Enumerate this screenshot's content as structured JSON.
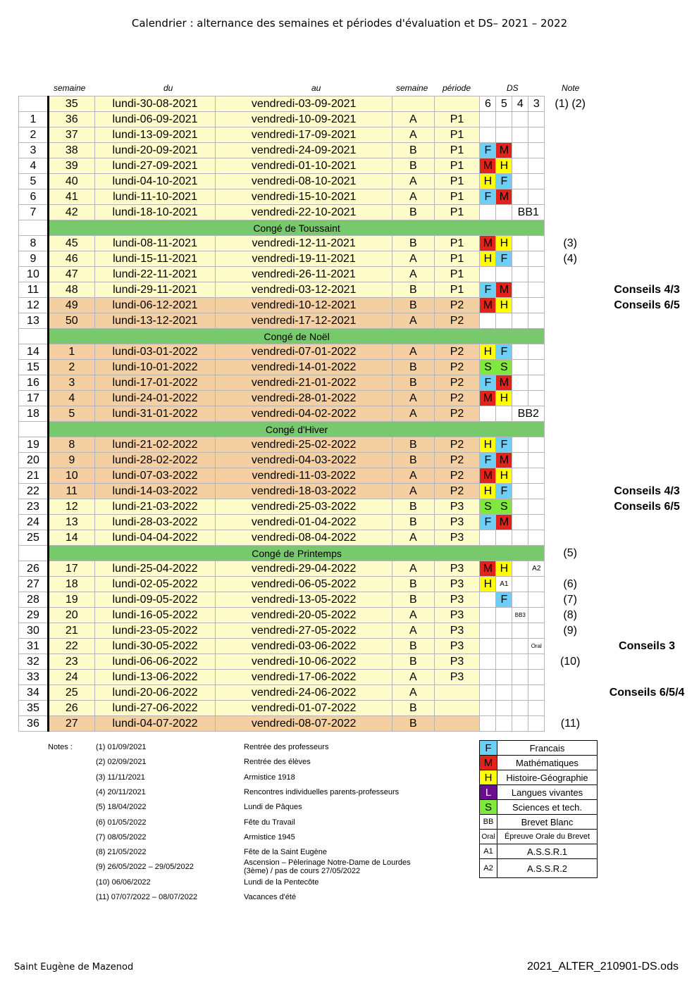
{
  "title": "Calendrier : alternance des semaines et périodes d'évaluation et DS– 2021 – 2022",
  "headers": {
    "semaine": "semaine",
    "du": "du",
    "au": "au",
    "ab": "semaine",
    "periode": "période",
    "ds": "DS",
    "note": "Note"
  },
  "rows": [
    {
      "idx": "",
      "sem": "35",
      "du": "lundi-30-08-2021",
      "au": "vendredi-03-09-2021",
      "ab": "",
      "per": "",
      "bg": "y",
      "ds": [
        "6",
        "5",
        "4",
        "3"
      ],
      "note": "(1) (2)",
      "side": ""
    },
    {
      "idx": "1",
      "sem": "36",
      "du": "lundi-06-09-2021",
      "au": "vendredi-10-09-2021",
      "ab": "A",
      "per": "P1",
      "bg": "y",
      "ds": [
        "",
        "",
        "",
        ""
      ],
      "note": "",
      "side": ""
    },
    {
      "idx": "2",
      "sem": "37",
      "du": "lundi-13-09-2021",
      "au": "vendredi-17-09-2021",
      "ab": "A",
      "per": "P1",
      "bg": "y",
      "ds": [
        "",
        "",
        "",
        ""
      ],
      "note": "",
      "side": ""
    },
    {
      "idx": "3",
      "sem": "38",
      "du": "lundi-20-09-2021",
      "au": "vendredi-24-09-2021",
      "ab": "B",
      "per": "P1",
      "bg": "y",
      "ds": [
        "F",
        "M",
        "",
        ""
      ],
      "note": "",
      "side": ""
    },
    {
      "idx": "4",
      "sem": "39",
      "du": "lundi-27-09-2021",
      "au": "vendredi-01-10-2021",
      "ab": "B",
      "per": "P1",
      "bg": "y",
      "ds": [
        "M",
        "H",
        "",
        ""
      ],
      "note": "",
      "side": ""
    },
    {
      "idx": "5",
      "sem": "40",
      "du": "lundi-04-10-2021",
      "au": "vendredi-08-10-2021",
      "ab": "A",
      "per": "P1",
      "bg": "y",
      "ds": [
        "H",
        "F",
        "",
        ""
      ],
      "note": "",
      "side": ""
    },
    {
      "idx": "6",
      "sem": "41",
      "du": "lundi-11-10-2021",
      "au": "vendredi-15-10-2021",
      "ab": "A",
      "per": "P1",
      "bg": "y",
      "ds": [
        "F",
        "M",
        "",
        ""
      ],
      "note": "",
      "side": ""
    },
    {
      "idx": "7",
      "sem": "42",
      "du": "lundi-18-10-2021",
      "au": "vendredi-22-10-2021",
      "ab": "B",
      "per": "P1",
      "bg": "y",
      "ds": [
        "",
        "",
        "BB1",
        ""
      ],
      "note": "",
      "side": "",
      "wide": "BB1"
    },
    {
      "conge": "Congé de Toussaint"
    },
    {
      "idx": "8",
      "sem": "45",
      "du": "lundi-08-11-2021",
      "au": "vendredi-12-11-2021",
      "ab": "B",
      "per": "P1",
      "bg": "y",
      "ds": [
        "M",
        "H",
        "",
        ""
      ],
      "note": "(3)",
      "side": ""
    },
    {
      "idx": "9",
      "sem": "46",
      "du": "lundi-15-11-2021",
      "au": "vendredi-19-11-2021",
      "ab": "A",
      "per": "P1",
      "bg": "y",
      "ds": [
        "H",
        "F",
        "",
        ""
      ],
      "note": "(4)",
      "side": ""
    },
    {
      "idx": "10",
      "sem": "47",
      "du": "lundi-22-11-2021",
      "au": "vendredi-26-11-2021",
      "ab": "A",
      "per": "P1",
      "bg": "y",
      "ds": [
        "",
        "",
        "",
        ""
      ],
      "note": "",
      "side": ""
    },
    {
      "idx": "11",
      "sem": "48",
      "du": "lundi-29-11-2021",
      "au": "vendredi-03-12-2021",
      "ab": "B",
      "per": "P1",
      "bg": "y",
      "ds": [
        "F",
        "M",
        "",
        ""
      ],
      "note": "",
      "side": "Conseils 4/3"
    },
    {
      "idx": "12",
      "sem": "49",
      "du": "lundi-06-12-2021",
      "au": "vendredi-10-12-2021",
      "ab": "B",
      "per": "P2",
      "bg": "o",
      "ds": [
        "M",
        "H",
        "",
        ""
      ],
      "note": "",
      "side": "Conseils 6/5"
    },
    {
      "idx": "13",
      "sem": "50",
      "du": "lundi-13-12-2021",
      "au": "vendredi-17-12-2021",
      "ab": "A",
      "per": "P2",
      "bg": "o",
      "ds": [
        "",
        "",
        "",
        ""
      ],
      "note": "",
      "side": ""
    },
    {
      "conge": "Congé de Noël"
    },
    {
      "idx": "14",
      "sem": "1",
      "du": "lundi-03-01-2022",
      "au": "vendredi-07-01-2022",
      "ab": "A",
      "per": "P2",
      "bg": "o",
      "ds": [
        "H",
        "F",
        "",
        ""
      ],
      "note": "",
      "side": ""
    },
    {
      "idx": "15",
      "sem": "2",
      "du": "lundi-10-01-2022",
      "au": "vendredi-14-01-2022",
      "ab": "B",
      "per": "P2",
      "bg": "o",
      "ds": [
        "S",
        "S",
        "",
        ""
      ],
      "note": "",
      "side": ""
    },
    {
      "idx": "16",
      "sem": "3",
      "du": "lundi-17-01-2022",
      "au": "vendredi-21-01-2022",
      "ab": "B",
      "per": "P2",
      "bg": "o",
      "ds": [
        "F",
        "M",
        "",
        ""
      ],
      "note": "",
      "side": ""
    },
    {
      "idx": "17",
      "sem": "4",
      "du": "lundi-24-01-2022",
      "au": "vendredi-28-01-2022",
      "ab": "A",
      "per": "P2",
      "bg": "o",
      "ds": [
        "M",
        "H",
        "",
        ""
      ],
      "note": "",
      "side": ""
    },
    {
      "idx": "18",
      "sem": "5",
      "du": "lundi-31-01-2022",
      "au": "vendredi-04-02-2022",
      "ab": "A",
      "per": "P2",
      "bg": "o",
      "ds": [
        "",
        "",
        "BB2",
        ""
      ],
      "note": "",
      "side": "",
      "wide": "BB2"
    },
    {
      "conge": "Congé d'Hiver"
    },
    {
      "idx": "19",
      "sem": "8",
      "du": "lundi-21-02-2022",
      "au": "vendredi-25-02-2022",
      "ab": "B",
      "per": "P2",
      "bg": "o",
      "ds": [
        "H",
        "F",
        "",
        ""
      ],
      "note": "",
      "side": ""
    },
    {
      "idx": "20",
      "sem": "9",
      "du": "lundi-28-02-2022",
      "au": "vendredi-04-03-2022",
      "ab": "B",
      "per": "P2",
      "bg": "o",
      "ds": [
        "F",
        "M",
        "",
        ""
      ],
      "note": "",
      "side": ""
    },
    {
      "idx": "21",
      "sem": "10",
      "du": "lundi-07-03-2022",
      "au": "vendredi-11-03-2022",
      "ab": "A",
      "per": "P2",
      "bg": "o",
      "ds": [
        "M",
        "H",
        "",
        ""
      ],
      "note": "",
      "side": ""
    },
    {
      "idx": "22",
      "sem": "11",
      "du": "lundi-14-03-2022",
      "au": "vendredi-18-03-2022",
      "ab": "A",
      "per": "P2",
      "bg": "o",
      "ds": [
        "H",
        "F",
        "",
        ""
      ],
      "note": "",
      "side": "Conseils 4/3"
    },
    {
      "idx": "23",
      "sem": "12",
      "du": "lundi-21-03-2022",
      "au": "vendredi-25-03-2022",
      "ab": "B",
      "per": "P3",
      "bg": "y",
      "ds": [
        "S",
        "S",
        "",
        ""
      ],
      "note": "",
      "side": "Conseils 6/5"
    },
    {
      "idx": "24",
      "sem": "13",
      "du": "lundi-28-03-2022",
      "au": "vendredi-01-04-2022",
      "ab": "B",
      "per": "P3",
      "bg": "y",
      "ds": [
        "F",
        "M",
        "",
        ""
      ],
      "note": "",
      "side": ""
    },
    {
      "idx": "25",
      "sem": "14",
      "du": "lundi-04-04-2022",
      "au": "vendredi-08-04-2022",
      "ab": "A",
      "per": "P3",
      "bg": "y",
      "ds": [
        "",
        "",
        "",
        ""
      ],
      "note": "",
      "side": ""
    },
    {
      "conge": "Congé de Printemps",
      "note": "(5)"
    },
    {
      "idx": "26",
      "sem": "17",
      "du": "lundi-25-04-2022",
      "au": "vendredi-29-04-2022",
      "ab": "A",
      "per": "P3",
      "bg": "y",
      "ds": [
        "M",
        "H",
        "",
        "A2"
      ],
      "note": "",
      "side": ""
    },
    {
      "idx": "27",
      "sem": "18",
      "du": "lundi-02-05-2022",
      "au": "vendredi-06-05-2022",
      "ab": "B",
      "per": "P3",
      "bg": "y",
      "ds": [
        "H",
        "A1",
        "",
        ""
      ],
      "note": "(6)",
      "side": ""
    },
    {
      "idx": "28",
      "sem": "19",
      "du": "lundi-09-05-2022",
      "au": "vendredi-13-05-2022",
      "ab": "B",
      "per": "P3",
      "bg": "y",
      "ds": [
        "",
        "F",
        "",
        ""
      ],
      "note": "(7)",
      "side": ""
    },
    {
      "idx": "29",
      "sem": "20",
      "du": "lundi-16-05-2022",
      "au": "vendredi-20-05-2022",
      "ab": "A",
      "per": "P3",
      "bg": "y",
      "ds": [
        "",
        "",
        "BB3",
        ""
      ],
      "note": "(8)",
      "side": ""
    },
    {
      "idx": "30",
      "sem": "21",
      "du": "lundi-23-05-2022",
      "au": "vendredi-27-05-2022",
      "ab": "A",
      "per": "P3",
      "bg": "y",
      "ds": [
        "",
        "",
        "",
        ""
      ],
      "note": "(9)",
      "side": ""
    },
    {
      "idx": "31",
      "sem": "22",
      "du": "lundi-30-05-2022",
      "au": "vendredi-03-06-2022",
      "ab": "B",
      "per": "P3",
      "bg": "y",
      "ds": [
        "",
        "",
        "",
        "Oral"
      ],
      "note": "",
      "side": "Conseils 3"
    },
    {
      "idx": "32",
      "sem": "23",
      "du": "lundi-06-06-2022",
      "au": "vendredi-10-06-2022",
      "ab": "B",
      "per": "P3",
      "bg": "y",
      "ds": [
        "",
        "",
        "",
        ""
      ],
      "note": "(10)",
      "side": ""
    },
    {
      "idx": "33",
      "sem": "24",
      "du": "lundi-13-06-2022",
      "au": "vendredi-17-06-2022",
      "ab": "A",
      "per": "P3",
      "bg": "y",
      "ds": [
        "",
        "",
        "",
        ""
      ],
      "note": "",
      "side": ""
    },
    {
      "idx": "34",
      "sem": "25",
      "du": "lundi-20-06-2022",
      "au": "vendredi-24-06-2022",
      "ab": "A",
      "per": "",
      "bg": "y",
      "ds": [
        "",
        "",
        "",
        ""
      ],
      "note": "",
      "side": "Conseils 6/5/4"
    },
    {
      "idx": "35",
      "sem": "26",
      "du": "lundi-27-06-2022",
      "au": "vendredi-01-07-2022",
      "ab": "B",
      "per": "",
      "bg": "y",
      "ds": [
        "",
        "",
        "",
        ""
      ],
      "note": "",
      "side": ""
    },
    {
      "idx": "36",
      "sem": "27",
      "du": "lundi-04-07-2022",
      "au": "vendredi-08-07-2022",
      "ab": "B",
      "per": "",
      "bg": "o",
      "ds": [
        "",
        "",
        "",
        ""
      ],
      "note": "(11)",
      "side": ""
    }
  ],
  "notes_label": "Notes :",
  "notes": [
    {
      "date": "(1) 01/09/2021",
      "text": "Rentrée des professeurs"
    },
    {
      "date": "(2) 02/09/2021",
      "text": "Rentrée des élèves"
    },
    {
      "date": "(3) 11/11/2021",
      "text": "Armistice 1918"
    },
    {
      "date": "(4) 20/11/2021",
      "text": "Rencontres individuelles parents-professeurs"
    },
    {
      "date": "(5) 18/04/2022",
      "text": "Lundi de Pâques"
    },
    {
      "date": "(6) 01/05/2022",
      "text": "Fête du Travail"
    },
    {
      "date": "(7) 08/05/2022",
      "text": "Armistice 1945"
    },
    {
      "date": "(8) 21/05/2022",
      "text": "Fête de la Saint Eugène"
    },
    {
      "date": "(9) 26/05/2022 – 29/05/2022",
      "text": "Ascension – Pèlerinage Notre-Dame de Lourdes (3ème) / pas de cours 27/05/2022"
    },
    {
      "date": "(10) 06/06/2022",
      "text": "Lundi de la Pentecôte"
    },
    {
      "date": "(11) 07/07/2022 – 08/07/2022",
      "text": "Vacances d'été"
    }
  ],
  "legend": [
    {
      "code": "F",
      "label": "Francais",
      "color": "#6dcff6",
      "fg": "#000"
    },
    {
      "code": "M",
      "label": "Mathématiques",
      "color": "#e2231a",
      "fg": "#000"
    },
    {
      "code": "H",
      "label": "Histoire-Géographie",
      "color": "#ffff00",
      "fg": "#000"
    },
    {
      "code": "L",
      "label": "Langues vivantes",
      "color": "#6a0d91",
      "fg": "#fff"
    },
    {
      "code": "S",
      "label": "Sciences et tech.",
      "color": "#7ee83c",
      "fg": "#000"
    },
    {
      "code": "BB",
      "label": "Brevet Blanc",
      "color": "#ffffff",
      "fg": "#000"
    },
    {
      "code": "Oral",
      "label": "Épreuve Orale du Brevet",
      "color": "#ffffff",
      "fg": "#000"
    },
    {
      "code": "A1",
      "label": "A.S.S.R.1",
      "color": "#ffffff",
      "fg": "#000"
    },
    {
      "code": "A2",
      "label": "A.S.S.R.2",
      "color": "#ffffff",
      "fg": "#000"
    }
  ],
  "footer": {
    "left": "Saint Eugène de Mazenod",
    "right": "2021_ALTER_210901-DS.ods"
  }
}
